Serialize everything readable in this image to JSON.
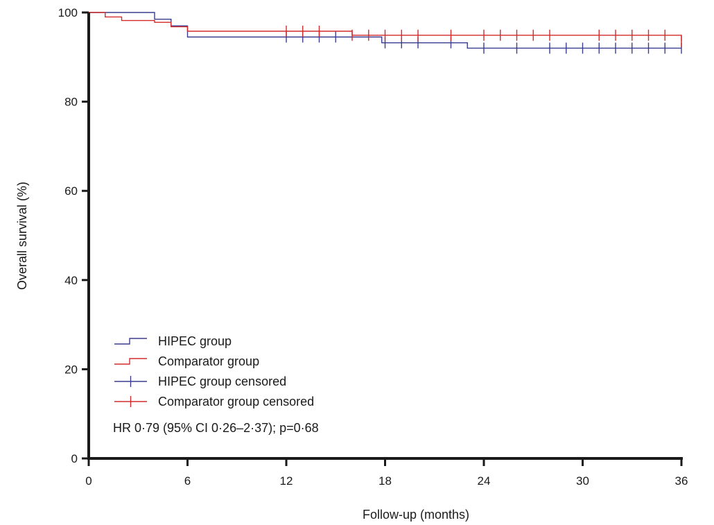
{
  "chart_data": {
    "type": "line",
    "step": true,
    "title": "",
    "xlabel": "Follow-up (months)",
    "ylabel": "Overall survival (%)",
    "xlim": [
      0,
      36
    ],
    "ylim": [
      0,
      100
    ],
    "xticks": [
      0,
      6,
      12,
      18,
      24,
      30,
      36
    ],
    "yticks": [
      0,
      20,
      40,
      60,
      80,
      100
    ],
    "grid": false,
    "legend_position": "bottom-left",
    "annotation": "HR 0·79 (95% CI 0·26–2·37); p=0·68",
    "series": [
      {
        "name": "HIPEC group",
        "color": "#3a3d8f",
        "points": [
          [
            0,
            100
          ],
          [
            4,
            100
          ],
          [
            4,
            98.5
          ],
          [
            5,
            98.5
          ],
          [
            5,
            97
          ],
          [
            6,
            97
          ],
          [
            6,
            94.5
          ],
          [
            17.8,
            94.5
          ],
          [
            17.8,
            93.2
          ],
          [
            23,
            93.2
          ],
          [
            23,
            92
          ],
          [
            36,
            92
          ]
        ],
        "censored_name": "HIPEC group censored",
        "censored": [
          [
            12,
            94.5
          ],
          [
            13,
            94.5
          ],
          [
            14,
            94.5
          ],
          [
            15,
            94.5
          ],
          [
            18,
            93.2
          ],
          [
            19,
            93.2
          ],
          [
            20,
            93.2
          ],
          [
            22,
            93.2
          ],
          [
            24,
            92
          ],
          [
            26,
            92
          ],
          [
            28,
            92
          ],
          [
            29,
            92
          ],
          [
            30,
            92
          ],
          [
            31,
            92
          ],
          [
            32,
            92
          ],
          [
            33,
            92
          ],
          [
            34,
            92
          ],
          [
            35,
            92
          ],
          [
            36,
            92
          ]
        ]
      },
      {
        "name": "Comparator group",
        "color": "#d22a2a",
        "points": [
          [
            0,
            100
          ],
          [
            1,
            100
          ],
          [
            1,
            99
          ],
          [
            2,
            99
          ],
          [
            2,
            98.2
          ],
          [
            4,
            98.2
          ],
          [
            4,
            97.8
          ],
          [
            5,
            97.8
          ],
          [
            5,
            96.8
          ],
          [
            6,
            96.8
          ],
          [
            6,
            95.8
          ],
          [
            16,
            95.8
          ],
          [
            16,
            94.9
          ],
          [
            36,
            94.9
          ],
          [
            36,
            93.5
          ]
        ],
        "censored_name": "Comparator group censored",
        "censored": [
          [
            12,
            95.8
          ],
          [
            13,
            95.8
          ],
          [
            14,
            95.8
          ],
          [
            16,
            94.9
          ],
          [
            17,
            94.9
          ],
          [
            18,
            94.9
          ],
          [
            19,
            94.9
          ],
          [
            20,
            94.9
          ],
          [
            22,
            94.9
          ],
          [
            24,
            94.9
          ],
          [
            25,
            94.9
          ],
          [
            26,
            94.9
          ],
          [
            27,
            94.9
          ],
          [
            28,
            94.9
          ],
          [
            31,
            94.9
          ],
          [
            32,
            94.9
          ],
          [
            33,
            94.9
          ],
          [
            34,
            94.9
          ],
          [
            35,
            94.9
          ],
          [
            36,
            93.5
          ]
        ]
      }
    ]
  }
}
